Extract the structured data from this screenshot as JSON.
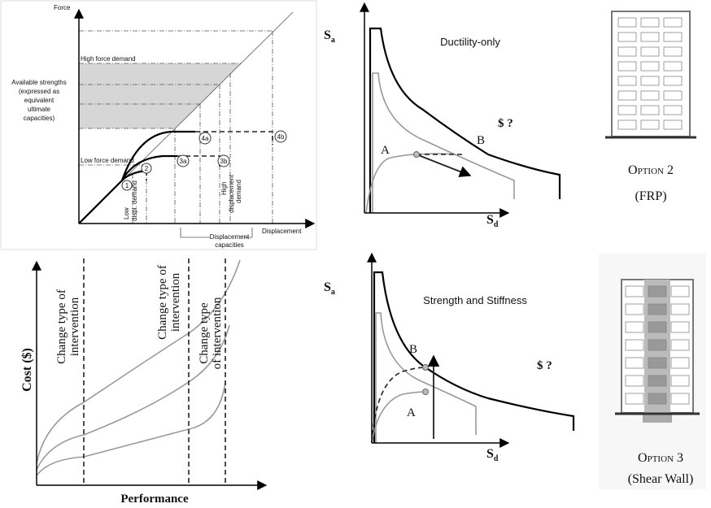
{
  "force_displacement": {
    "y_axis": "Force",
    "x_axis": "Displacement",
    "high_force_demand": "High force demand",
    "low_force_demand": "Low force demand",
    "available_strengths": [
      "Available strengths",
      "(expressed as",
      "equivalent",
      "ultimate",
      "capacities)"
    ],
    "low_displacement_demand": [
      "Low",
      "displ. demand"
    ],
    "high_displacement_demand": [
      "High",
      "displacement",
      "demand"
    ],
    "displacement_capacities": [
      "Displacement",
      "capacities"
    ],
    "points": [
      "1",
      "2",
      "3a",
      "3b",
      "4a",
      "4b"
    ]
  },
  "ductility_only": {
    "title": "Ductility-only",
    "y_axis": {
      "symbol": "S",
      "subscript": "a"
    },
    "x_axis": {
      "symbol": "S",
      "subscript": "d"
    },
    "cost": "$ ?",
    "point_a": "A",
    "point_b": "B"
  },
  "option_2": {
    "label": "Option 2",
    "detail": "(FRP)"
  },
  "cost_performance": {
    "y_axis": "Cost ($)",
    "x_axis": "Performance",
    "interventions": [
      [
        "Change type of",
        "intervention"
      ],
      [
        "Change type of",
        "intervention"
      ],
      [
        "Change type",
        "of intervention"
      ]
    ]
  },
  "strength_stiffness": {
    "title": "Strength and Stiffness",
    "y_axis": {
      "symbol": "S",
      "subscript": "a"
    },
    "x_axis": {
      "symbol": "S",
      "subscript": "d"
    },
    "cost": "$ ?",
    "point_b": "B",
    "point_a": "A"
  },
  "option_3": {
    "label": "Option 3",
    "detail": "(Shear Wall)"
  }
}
